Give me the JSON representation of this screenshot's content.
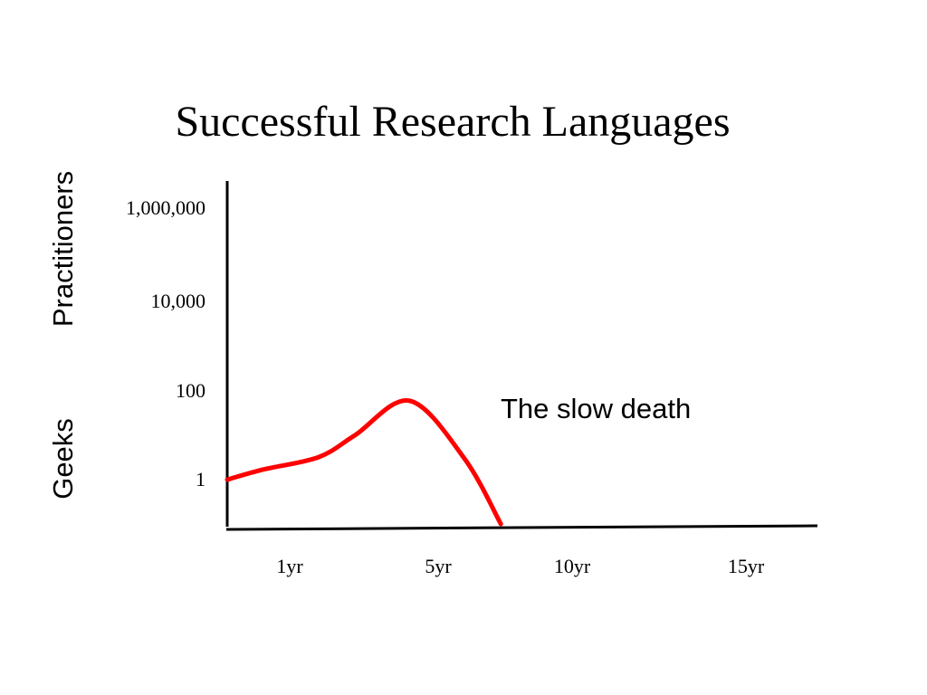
{
  "chart_data": {
    "type": "line",
    "title": "Successful Research Languages",
    "xlabel": "",
    "ylabel": "Practitioners",
    "y_low_label": "Geeks",
    "y_scale": "log",
    "y_ticks": [
      "1,000,000",
      "10,000",
      "100",
      "1"
    ],
    "y_tick_values": [
      1000000,
      10000,
      100,
      1
    ],
    "x_ticks": [
      "1yr",
      "5yr",
      "10yr",
      "15yr"
    ],
    "x_tick_values": [
      1,
      5,
      10,
      15
    ],
    "annotation": "The slow death",
    "grid": false,
    "legend": "none",
    "line_color": "#ff0000",
    "series": [
      {
        "name": "",
        "points": [
          {
            "x": 0,
            "y": 1
          },
          {
            "x": 1,
            "y": 1.7
          },
          {
            "x": 2.5,
            "y": 3.2
          },
          {
            "x": 3.5,
            "y": 10
          },
          {
            "x": 5,
            "y": 60
          },
          {
            "x": 6.5,
            "y": 3
          },
          {
            "x": 7.5,
            "y": 0.1
          }
        ]
      }
    ]
  }
}
